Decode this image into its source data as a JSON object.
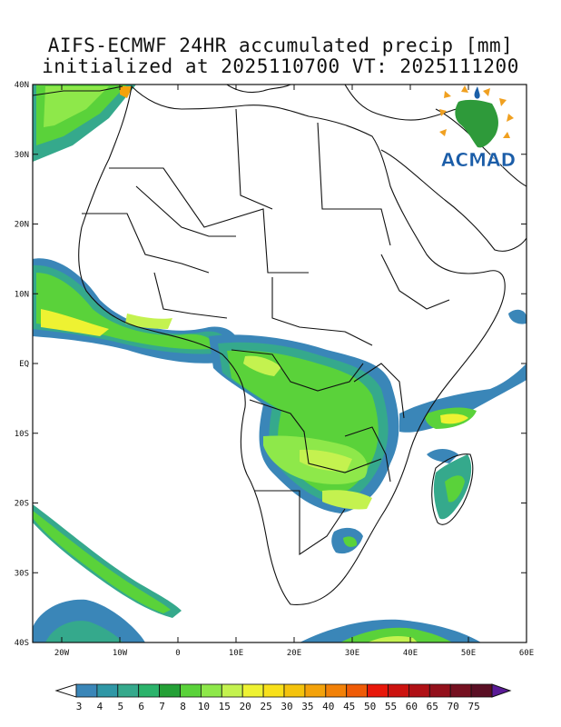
{
  "title": {
    "line1": "AIFS-ECMWF 24HR accumulated precip [mm]",
    "line2": "initialized at 2025110700 VT: 2025111200"
  },
  "axes": {
    "lat_labels": [
      "40N",
      "30N",
      "20N",
      "10N",
      "EQ",
      "10S",
      "20S",
      "30S",
      "40S"
    ],
    "lon_labels": [
      "20W",
      "10W",
      "0",
      "10E",
      "20E",
      "30E",
      "40E",
      "50E",
      "60E"
    ]
  },
  "legend": {
    "labels": [
      "3",
      "4",
      "5",
      "6",
      "7",
      "8",
      "10",
      "15",
      "20",
      "25",
      "30",
      "35",
      "40",
      "45",
      "50",
      "55",
      "60",
      "65",
      "70",
      "75"
    ],
    "colors": [
      "#3a86b8",
      "#2f97a6",
      "#35a98c",
      "#2bb36b",
      "#24a036",
      "#5ad23a",
      "#8ee84a",
      "#c4f24f",
      "#eef232",
      "#f8e01a",
      "#f4c30d",
      "#f3a20b",
      "#f28108",
      "#ef5b07",
      "#e8170a",
      "#cc120f",
      "#b01015",
      "#93101b",
      "#751020",
      "#5a0f24"
    ],
    "arrow_low": "#ffffff",
    "arrow_high": "#5a1b96"
  },
  "logo": {
    "text": "ACMAD"
  }
}
